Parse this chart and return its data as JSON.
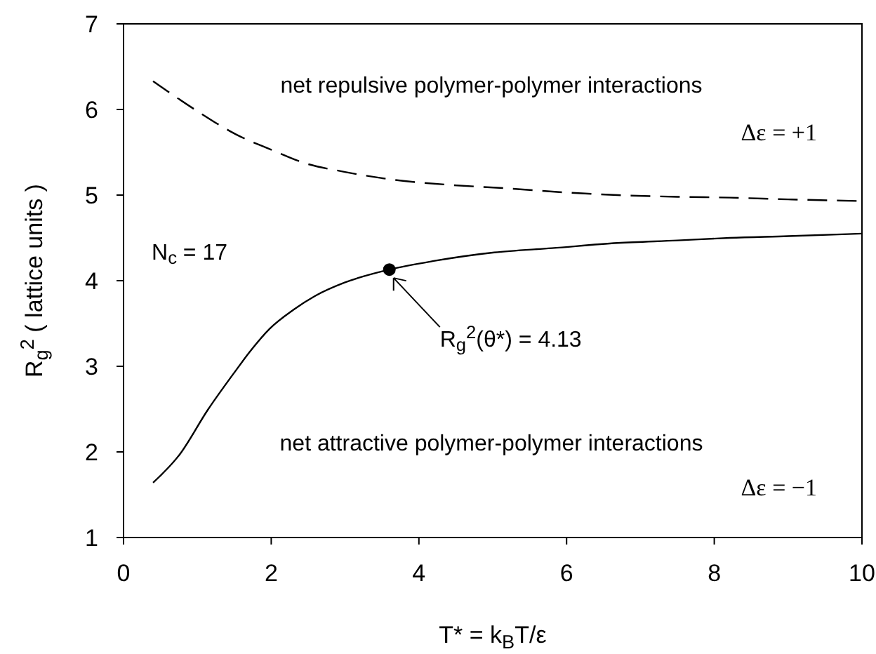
{
  "chart_data": {
    "type": "line",
    "xlabel": "T* = k$_{B}$T/ε",
    "ylabel": "R$_{g}$$^{2}$ ( lattice units )",
    "xlim": [
      0,
      10
    ],
    "xticks": [
      0,
      2,
      4,
      6,
      8,
      10
    ],
    "ylim": [
      1,
      7
    ],
    "yticks": [
      1,
      2,
      3,
      4,
      5,
      6,
      7
    ],
    "grid": false,
    "series": [
      {
        "color": "#000000",
        "line_style": "dashed",
        "marker": "none",
        "x": [
          0.4,
          1.0,
          1.52,
          2.0,
          2.43,
          3.0,
          3.65,
          4.4,
          5.17,
          6.0,
          6.69,
          7.5,
          8.21,
          9.0,
          10
        ],
        "values": [
          6.33,
          5.98,
          5.71,
          5.53,
          5.38,
          5.27,
          5.18,
          5.12,
          5.08,
          5.03,
          5.0,
          4.98,
          4.97,
          4.95,
          4.93
        ]
      },
      {
        "color": "#000000",
        "line_style": "solid",
        "marker": "none",
        "x": [
          0.4,
          0.76,
          1.14,
          1.52,
          1.71,
          1.98,
          2.3,
          2.59,
          3.0,
          3.6,
          4.2,
          5.02,
          5.8,
          6.69,
          7.5,
          8.21,
          9.0,
          10
        ],
        "values": [
          1.64,
          1.97,
          2.49,
          2.95,
          3.17,
          3.44,
          3.66,
          3.82,
          3.98,
          4.13,
          4.23,
          4.33,
          4.38,
          4.44,
          4.47,
          4.5,
          4.52,
          4.55
        ]
      },
      {
        "type": "scatter",
        "color": "#000000",
        "marker": "circle",
        "x": [
          3.6
        ],
        "values": [
          4.13
        ]
      }
    ],
    "annotations": [
      "net repulsive polymer-polymer interactions",
      "net attractive polymer-polymer interactions",
      "N$_{c}$ = 17",
      "Δε = +1",
      "Δε = −1",
      {
        "text": "R$_{g}$$^{2}$(θ*) = 4.13",
        "x": 3.6,
        "y": 4.13
      }
    ]
  }
}
